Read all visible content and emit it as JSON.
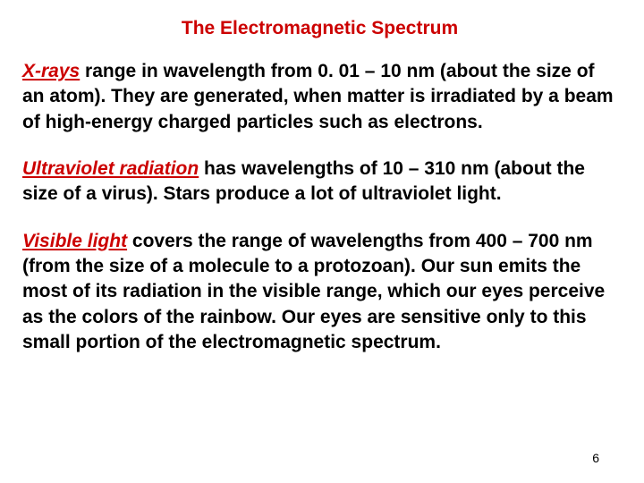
{
  "title": {
    "text": "The Electromagnetic Spectrum",
    "color": "#cc0000",
    "fontsize": 21
  },
  "paragraphs": [
    {
      "term": "X-rays",
      "term_color": "#cc0000",
      "body": " range in wavelength from 0. 01 – 10 nm (about the size of an atom). They are generated, when matter is irradiated by a beam of high-energy charged particles such as electrons.",
      "body_color": "#000000",
      "fontsize": 21
    },
    {
      "term": "Ultraviolet radiation",
      "term_color": "#cc0000",
      "body": " has wavelengths of 10 – 310 nm (about the size of a virus). Stars produce a lot of ultraviolet light.",
      "body_color": "#000000",
      "fontsize": 21
    },
    {
      "term": "Visible light",
      "term_color": "#cc0000",
      "body": " covers the range of wavelengths from 400 – 700 nm (from the size of a molecule to a protozoan). Our sun emits the most of its radiation in the visible range, which our eyes perceive as the colors of the rainbow. Our eyes are sensitive only to this small portion of the electromagnetic spectrum.",
      "body_color": "#000000",
      "fontsize": 21
    }
  ],
  "page_number": "6",
  "page_number_color": "#000000"
}
